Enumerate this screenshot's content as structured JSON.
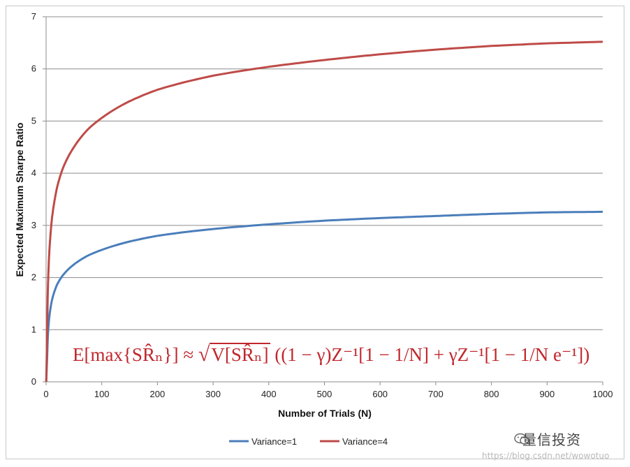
{
  "chart_data": {
    "type": "line",
    "title": "",
    "xlabel": "Number of Trials (N)",
    "ylabel": "Expected Maximum Sharpe Ratio",
    "xlim": [
      0,
      1000
    ],
    "ylim": [
      0,
      7
    ],
    "x_ticks": [
      "0",
      "100",
      "200",
      "300",
      "400",
      "500",
      "600",
      "700",
      "800",
      "900",
      "1000"
    ],
    "y_ticks": [
      "0",
      "1",
      "2",
      "3",
      "4",
      "5",
      "6",
      "7"
    ],
    "grid": "horizontal",
    "legend_position": "bottom",
    "series": [
      {
        "name": "Variance=1",
        "color": "#4a7ebb",
        "x": [
          2,
          3,
          5,
          10,
          20,
          30,
          50,
          75,
          100,
          150,
          200,
          300,
          400,
          500,
          600,
          700,
          800,
          900,
          1000
        ],
        "values": [
          0.5,
          0.84,
          1.16,
          1.54,
          1.87,
          2.04,
          2.25,
          2.42,
          2.53,
          2.69,
          2.8,
          2.93,
          3.02,
          3.09,
          3.14,
          3.18,
          3.22,
          3.25,
          3.26
        ]
      },
      {
        "name": "Variance=4",
        "color": "#be4b48",
        "x": [
          2,
          3,
          5,
          10,
          20,
          30,
          50,
          75,
          100,
          150,
          200,
          300,
          400,
          500,
          600,
          700,
          800,
          900,
          1000
        ],
        "values": [
          1.0,
          1.69,
          2.33,
          3.08,
          3.74,
          4.09,
          4.5,
          4.84,
          5.06,
          5.38,
          5.6,
          5.87,
          6.04,
          6.17,
          6.28,
          6.37,
          6.44,
          6.49,
          6.52
        ]
      }
    ]
  },
  "formula": {
    "lhs": "E[max{SR̂ₙ}]",
    "approx": "≈",
    "root": "V[SR̂ₙ]",
    "body": "((1 − γ)Z⁻¹[1 − 1/N] + γZ⁻¹[1 − 1/N e⁻¹])"
  },
  "watermark": {
    "text": "量信投资",
    "url": "https://blog.csdn.net/wowotuo"
  }
}
